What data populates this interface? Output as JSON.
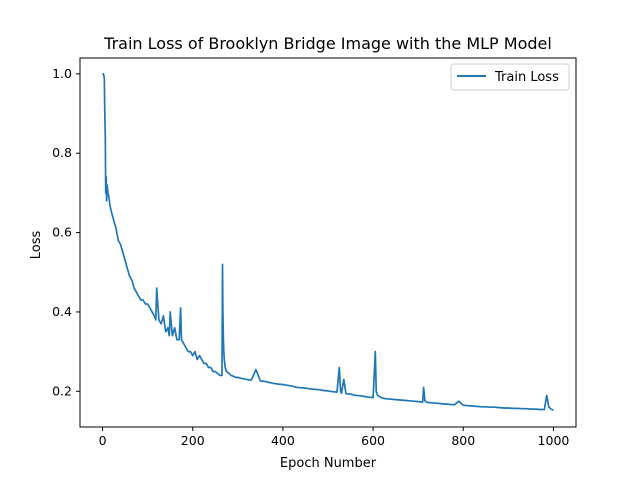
{
  "chart_data": {
    "type": "line",
    "title": "Train Loss of Brooklyn Bridge Image with the MLP Model",
    "xlabel": "Epoch Number",
    "ylabel": "Loss",
    "xlim": [
      -50,
      1050
    ],
    "ylim": [
      0.11,
      1.04
    ],
    "x_ticks": [
      0,
      200,
      400,
      600,
      800,
      1000
    ],
    "y_ticks": [
      0.2,
      0.4,
      0.6,
      0.8,
      1.0
    ],
    "x_tick_labels": [
      "0",
      "200",
      "400",
      "600",
      "800",
      "1000"
    ],
    "y_tick_labels": [
      "0.2",
      "0.4",
      "0.6",
      "0.8",
      "1.0"
    ],
    "grid": false,
    "legend_position": "top-right",
    "series": [
      {
        "name": "Train Loss",
        "color": "#1f77b4",
        "x": [
          0,
          2,
          4,
          5,
          6,
          7,
          8,
          9,
          10,
          12,
          14,
          16,
          18,
          20,
          25,
          30,
          35,
          40,
          45,
          50,
          55,
          60,
          65,
          70,
          75,
          80,
          85,
          90,
          95,
          100,
          105,
          110,
          115,
          118,
          120,
          125,
          130,
          135,
          140,
          145,
          148,
          150,
          155,
          160,
          165,
          170,
          173,
          175,
          180,
          185,
          190,
          195,
          200,
          205,
          210,
          215,
          220,
          225,
          230,
          235,
          240,
          245,
          250,
          255,
          260,
          265,
          266,
          267,
          268,
          269,
          270,
          272,
          275,
          280,
          285,
          290,
          295,
          300,
          310,
          320,
          330,
          340,
          350,
          360,
          370,
          380,
          390,
          400,
          410,
          420,
          430,
          440,
          450,
          460,
          470,
          480,
          490,
          500,
          510,
          520,
          525,
          528,
          530,
          535,
          540,
          550,
          560,
          570,
          580,
          590,
          600,
          605,
          606,
          607,
          610,
          615,
          620,
          630,
          640,
          650,
          660,
          670,
          680,
          690,
          700,
          710,
          712,
          715,
          720,
          730,
          740,
          750,
          760,
          770,
          780,
          790,
          800,
          810,
          820,
          830,
          840,
          850,
          860,
          870,
          880,
          890,
          900,
          910,
          920,
          930,
          940,
          950,
          960,
          970,
          980,
          985,
          990,
          995,
          1000
        ],
        "values": [
          1.0,
          1.0,
          0.99,
          0.9,
          0.84,
          0.7,
          0.74,
          0.68,
          0.72,
          0.7,
          0.69,
          0.67,
          0.66,
          0.65,
          0.63,
          0.61,
          0.58,
          0.57,
          0.55,
          0.53,
          0.51,
          0.49,
          0.48,
          0.46,
          0.45,
          0.44,
          0.43,
          0.43,
          0.42,
          0.42,
          0.41,
          0.4,
          0.39,
          0.38,
          0.46,
          0.38,
          0.37,
          0.39,
          0.35,
          0.36,
          0.34,
          0.4,
          0.34,
          0.36,
          0.33,
          0.33,
          0.41,
          0.33,
          0.32,
          0.31,
          0.3,
          0.3,
          0.29,
          0.3,
          0.28,
          0.29,
          0.28,
          0.27,
          0.27,
          0.26,
          0.26,
          0.25,
          0.25,
          0.245,
          0.24,
          0.24,
          0.52,
          0.4,
          0.33,
          0.3,
          0.28,
          0.26,
          0.25,
          0.245,
          0.24,
          0.238,
          0.235,
          0.235,
          0.232,
          0.23,
          0.228,
          0.255,
          0.226,
          0.225,
          0.222,
          0.22,
          0.218,
          0.217,
          0.215,
          0.213,
          0.21,
          0.209,
          0.208,
          0.206,
          0.205,
          0.204,
          0.202,
          0.201,
          0.199,
          0.198,
          0.26,
          0.2,
          0.195,
          0.23,
          0.194,
          0.193,
          0.19,
          0.189,
          0.187,
          0.185,
          0.184,
          0.3,
          0.25,
          0.2,
          0.19,
          0.186,
          0.183,
          0.181,
          0.18,
          0.179,
          0.178,
          0.177,
          0.176,
          0.175,
          0.174,
          0.173,
          0.21,
          0.176,
          0.172,
          0.171,
          0.17,
          0.169,
          0.168,
          0.167,
          0.166,
          0.175,
          0.165,
          0.164,
          0.163,
          0.162,
          0.161,
          0.161,
          0.16,
          0.16,
          0.159,
          0.158,
          0.158,
          0.157,
          0.157,
          0.156,
          0.156,
          0.155,
          0.155,
          0.154,
          0.154,
          0.19,
          0.16,
          0.155,
          0.152
        ]
      }
    ]
  }
}
